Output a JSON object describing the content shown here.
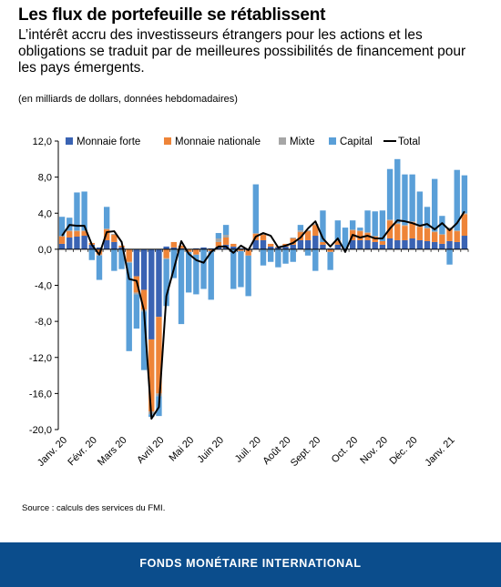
{
  "title": "Les flux de portefeuille se rétablissent",
  "subtitle": "L’intérêt accru des investisseurs étrangers pour les actions et les obligations se traduit par de meilleures possibilités de financement pour les pays émergents.",
  "units": "(en milliards de dollars, données hebdomadaires)",
  "source": "Source : calculs des services du FMI.",
  "footer": "FONDS MONÉTAIRE INTERNATIONAL",
  "colors": {
    "monnaie_forte": "#3a63b3",
    "monnaie_nationale": "#ee8438",
    "mixte": "#a6a6a6",
    "capital": "#5a9fd8",
    "total": "#000000",
    "footer": "#0b4d8c"
  },
  "chart_data": {
    "type": "bar",
    "stacked": true,
    "ylim": [
      -20,
      12
    ],
    "yticks": [
      "12,0",
      "8,0",
      "4,0",
      "0,0",
      "-4,0",
      "-8,0",
      "-12,0",
      "-16,0",
      "-20,0"
    ],
    "xticks": [
      {
        "label": "Janv. 20",
        "week": 0
      },
      {
        "label": "Févr. 20",
        "week": 4
      },
      {
        "label": "Mars 20",
        "week": 8
      },
      {
        "label": "Avril 20",
        "week": 13
      },
      {
        "label": "Mai 20",
        "week": 17
      },
      {
        "label": "Juin 20",
        "week": 21
      },
      {
        "label": "Juil. 20",
        "week": 26
      },
      {
        "label": "Août 20",
        "week": 30
      },
      {
        "label": "Sept. 20",
        "week": 34
      },
      {
        "label": "Oct. 20",
        "week": 39
      },
      {
        "label": "Nov. 20",
        "week": 43
      },
      {
        "label": "Déc. 20",
        "week": 47
      },
      {
        "label": "Janv. 21",
        "week": 52
      }
    ],
    "legend": [
      "Monnaie forte",
      "Monnaie nationale",
      "Mixte",
      "Capital",
      "Total"
    ],
    "legend_position": "top",
    "series": [
      {
        "name": "Monnaie forte",
        "values": [
          0.6,
          1.3,
          1.4,
          1.5,
          0.5,
          0.2,
          1.0,
          0.8,
          0.2,
          0.0,
          -3.0,
          -4.5,
          -10.0,
          -7.5,
          0.3,
          0.2,
          0.1,
          0.0,
          0.1,
          0.2,
          0.1,
          0.3,
          0.5,
          0.3,
          0.1,
          -0.1,
          1.0,
          1.0,
          0.3,
          0.2,
          0.3,
          0.5,
          1.0,
          1.0,
          1.5,
          0.5,
          0.1,
          0.5,
          0.1,
          1.0,
          1.0,
          1.0,
          0.8,
          0.5,
          1.2,
          1.0,
          1.0,
          1.2,
          1.0,
          0.9,
          0.8,
          0.6,
          0.9,
          0.8,
          1.5
        ]
      },
      {
        "name": "Monnaie nationale",
        "values": [
          0.8,
          0.7,
          0.6,
          0.5,
          0.2,
          -0.6,
          1.2,
          0.8,
          0.2,
          -1.4,
          -1.8,
          -2.2,
          -8.0,
          -8.5,
          -1.0,
          0.6,
          0.3,
          -0.3,
          -0.6,
          0.0,
          -0.2,
          0.5,
          0.8,
          0.3,
          -0.2,
          -0.6,
          0.7,
          0.6,
          0.3,
          0.1,
          0.3,
          0.7,
          0.9,
          1.0,
          1.2,
          0.3,
          -0.3,
          0.4,
          0.0,
          1.1,
          1.0,
          0.8,
          0.6,
          0.4,
          2.0,
          1.8,
          1.6,
          1.8,
          1.5,
          1.4,
          1.1,
          1.0,
          1.4,
          1.2,
          2.4
        ]
      },
      {
        "name": "Mixte",
        "values": [
          0.1,
          0.1,
          0.1,
          0.1,
          0.0,
          -0.1,
          0.1,
          0.1,
          0.0,
          -0.1,
          -0.2,
          -0.2,
          -0.3,
          -0.3,
          -0.1,
          0.0,
          0.0,
          0.0,
          0.0,
          0.0,
          0.0,
          0.4,
          0.3,
          0.0,
          0.0,
          0.0,
          0.1,
          0.1,
          0.0,
          0.0,
          0.0,
          0.1,
          0.2,
          0.1,
          0.1,
          0.0,
          0.0,
          0.1,
          0.0,
          0.1,
          0.1,
          0.1,
          0.1,
          0.0,
          0.1,
          0.1,
          0.1,
          0.1,
          0.1,
          0.1,
          0.1,
          0.1,
          0.1,
          0.1,
          0.1
        ]
      },
      {
        "name": "Capital",
        "values": [
          2.1,
          1.4,
          4.2,
          4.3,
          -1.2,
          -2.7,
          2.4,
          -2.4,
          -2.2,
          -9.8,
          -3.8,
          -6.5,
          -0.3,
          -2.2,
          -5.2,
          -3.2,
          -8.3,
          -4.5,
          -4.4,
          -4.4,
          -5.4,
          0.6,
          1.1,
          -4.4,
          -4.0,
          -4.5,
          5.4,
          -1.8,
          -1.4,
          -2.0,
          -1.6,
          -1.4,
          0.6,
          -0.7,
          -2.4,
          3.5,
          -2.0,
          2.2,
          2.3,
          1.0,
          0.3,
          2.4,
          2.7,
          3.4,
          5.6,
          7.1,
          5.6,
          5.2,
          3.8,
          2.3,
          5.8,
          2.0,
          -1.7,
          6.7,
          4.2
        ]
      },
      {
        "name": "Total",
        "values": [
          1.5,
          2.7,
          2.6,
          2.6,
          0.5,
          -0.6,
          1.9,
          2.0,
          0.8,
          -3.3,
          -3.5,
          -6.8,
          -18.8,
          -17.5,
          -5.2,
          -2.2,
          0.9,
          -0.5,
          -1.2,
          -1.5,
          -0.3,
          0.3,
          0.3,
          -0.4,
          0.4,
          -0.1,
          1.4,
          1.8,
          1.5,
          0.2,
          0.4,
          0.7,
          1.3,
          2.3,
          3.1,
          1.2,
          0.3,
          1.2,
          -0.3,
          1.6,
          1.3,
          1.5,
          1.2,
          1.2,
          2.3,
          3.2,
          3.1,
          2.9,
          2.6,
          2.8,
          2.2,
          2.9,
          2.1,
          2.9,
          4.2
        ]
      }
    ]
  }
}
